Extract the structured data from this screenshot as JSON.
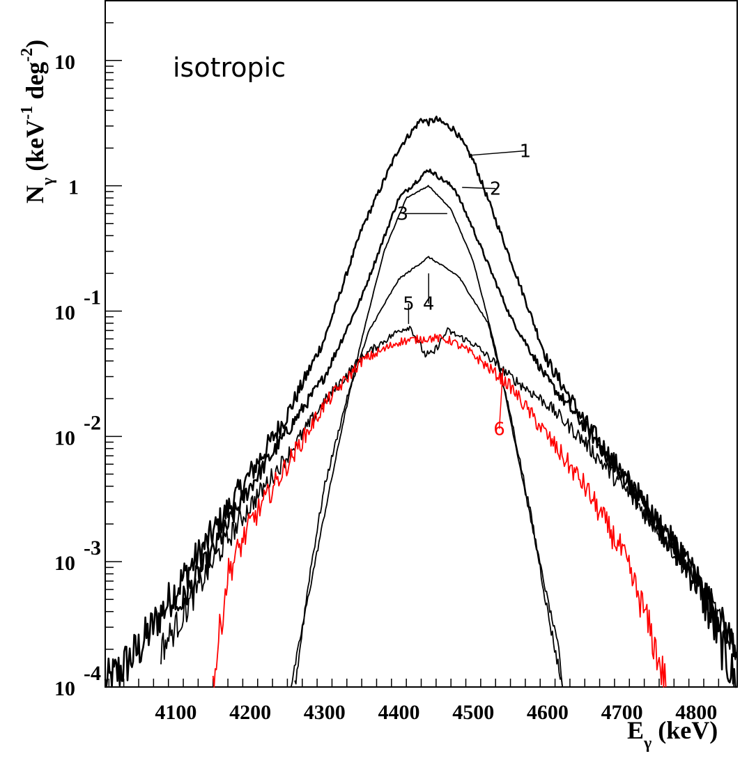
{
  "chart_data": {
    "type": "line",
    "annotation": "isotropic",
    "xlabel": {
      "base": "E",
      "sub": "γ",
      "rest": " (keV)"
    },
    "ylabel": {
      "base": "N",
      "sub": "γ",
      "rest": " (keV",
      "sup1": "-1",
      "mid": " deg",
      "sup2": "-2",
      "end": ")"
    },
    "xlim": [
      4005,
      4855
    ],
    "ylim": [
      0.0001,
      30
    ],
    "yscale": "log",
    "x_ticks": [
      4100,
      4200,
      4300,
      4400,
      4500,
      4600,
      4700,
      4800
    ],
    "x_tick_labels": [
      "4100",
      "4200",
      "4300",
      "4400",
      "4500",
      "4600",
      "4700",
      "4800"
    ],
    "y_ticks": [
      {
        "value": 10,
        "base": "10",
        "exp": ""
      },
      {
        "value": 1,
        "base": "1",
        "exp": ""
      },
      {
        "value": 0.1,
        "base": "10",
        "exp": "-1"
      },
      {
        "value": 0.01,
        "base": "10",
        "exp": "-2"
      },
      {
        "value": 0.001,
        "base": "10",
        "exp": "-3"
      },
      {
        "value": 0.0001,
        "base": "10",
        "exp": "-4"
      }
    ],
    "grid": false,
    "colors": {
      "black": "#000000",
      "red": "#ff0000"
    },
    "series": [
      {
        "name": "1",
        "color": "#000000",
        "noise": 0.35,
        "x": [
          4005,
          4050,
          4100,
          4150,
          4200,
          4250,
          4300,
          4350,
          4400,
          4430,
          4440,
          4450,
          4475,
          4500,
          4550,
          4600,
          4650,
          4700,
          4750,
          4800,
          4855
        ],
        "y": [
          0.0001,
          0.0002,
          0.0006,
          0.0017,
          0.005,
          0.015,
          0.06,
          0.45,
          2.0,
          3.4,
          3.2,
          3.4,
          2.8,
          1.6,
          0.26,
          0.04,
          0.013,
          0.005,
          0.002,
          0.0007,
          0.0001
        ]
      },
      {
        "name": "2",
        "color": "#000000",
        "noise": 0.25,
        "x": [
          4100,
          4150,
          4200,
          4250,
          4300,
          4350,
          4400,
          4440,
          4475,
          4500,
          4550,
          4600,
          4650,
          4700,
          4750,
          4800,
          4855
        ],
        "y": [
          0.0004,
          0.0012,
          0.004,
          0.011,
          0.03,
          0.13,
          0.8,
          1.35,
          0.95,
          0.45,
          0.09,
          0.028,
          0.012,
          0.005,
          0.002,
          0.0008,
          0.0002
        ]
      },
      {
        "name": "3",
        "color": "#000000",
        "noise": 0.06,
        "x": [
          4255,
          4270,
          4300,
          4325,
          4350,
          4380,
          4410,
          4440,
          4470,
          4500,
          4530,
          4560,
          4580,
          4600,
          4615,
          4620
        ],
        "y": [
          0.0001,
          0.0003,
          0.0024,
          0.013,
          0.06,
          0.3,
          0.8,
          1.0,
          0.65,
          0.25,
          0.05,
          0.007,
          0.0018,
          0.0005,
          0.0002,
          0.0001
        ]
      },
      {
        "name": "4",
        "color": "#000000",
        "noise": 0.1,
        "x": [
          4260,
          4280,
          4300,
          4330,
          4360,
          4400,
          4440,
          4480,
          4520,
          4550,
          4580,
          4600,
          4620
        ],
        "y": [
          0.0001,
          0.0008,
          0.004,
          0.02,
          0.07,
          0.18,
          0.27,
          0.19,
          0.08,
          0.015,
          0.002,
          0.0004,
          0.0001
        ]
      },
      {
        "name": "5",
        "color": "#000000",
        "noise": 0.25,
        "x": [
          4080,
          4100,
          4150,
          4200,
          4250,
          4300,
          4350,
          4400,
          4415,
          4435,
          4445,
          4465,
          4500,
          4550,
          4600,
          4650,
          4700,
          4750,
          4800,
          4855
        ],
        "y": [
          0.0002,
          0.0003,
          0.001,
          0.0028,
          0.007,
          0.019,
          0.043,
          0.07,
          0.075,
          0.045,
          0.045,
          0.07,
          0.055,
          0.03,
          0.018,
          0.009,
          0.004,
          0.0018,
          0.0007,
          0.0002
        ]
      },
      {
        "name": "6",
        "color": "#ff0000",
        "noise": 0.3,
        "x": [
          4150,
          4160,
          4170,
          4200,
          4250,
          4300,
          4350,
          4400,
          4430,
          4450,
          4470,
          4500,
          4550,
          4600,
          4650,
          4700,
          4730,
          4760
        ],
        "y": [
          0.0001,
          0.0003,
          0.0008,
          0.002,
          0.006,
          0.018,
          0.04,
          0.057,
          0.06,
          0.061,
          0.058,
          0.045,
          0.025,
          0.01,
          0.004,
          0.0012,
          0.0004,
          0.0001
        ]
      }
    ],
    "curve_labels": [
      {
        "text": "1",
        "color": "#000000",
        "x": 4570,
        "y": 1.9,
        "tx": 4495,
        "ty": 1.75
      },
      {
        "text": "2",
        "color": "#000000",
        "x": 4530,
        "y": 0.95,
        "tx": 4485,
        "ty": 0.97
      },
      {
        "text": "3",
        "color": "#000000",
        "x": 4405,
        "y": 0.6,
        "tx": 4465,
        "ty": 0.6
      },
      {
        "text": "4",
        "color": "#000000",
        "x": 4440,
        "y": 0.115,
        "tx": 4440,
        "ty": 0.2
      },
      {
        "text": "5",
        "color": "#000000",
        "x": 4413,
        "y": 0.115,
        "tx": 4413,
        "ty": 0.079
      },
      {
        "text": "6",
        "color": "#ff0000",
        "x": 4535,
        "y": 0.0115,
        "tx": 4540,
        "ty": 0.035
      }
    ]
  }
}
